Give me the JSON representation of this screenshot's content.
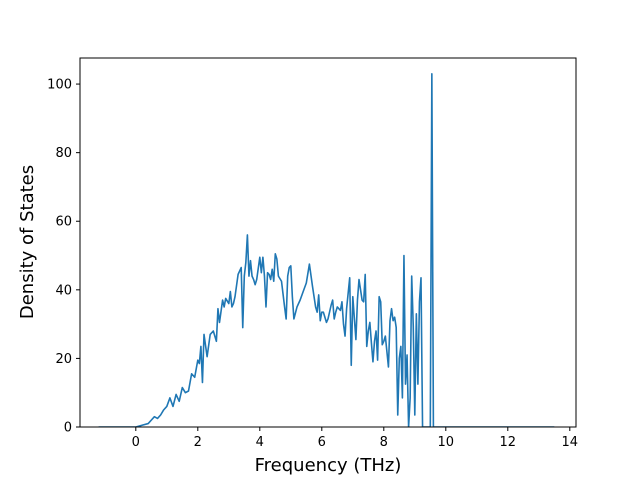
{
  "chart_data": {
    "type": "line",
    "title": "",
    "xlabel": "Frequency (THz)",
    "ylabel": "Density of States",
    "xlim": [
      -1.8,
      14.2
    ],
    "ylim": [
      0,
      107.6
    ],
    "xticks": [
      0,
      2,
      4,
      6,
      8,
      10,
      12,
      14
    ],
    "yticks": [
      0,
      20,
      40,
      60,
      80,
      100
    ],
    "grid": false,
    "legend": "none",
    "series": [
      {
        "color": "#1f77b4",
        "x": [
          -1.2,
          -0.5,
          0.0,
          0.2,
          0.4,
          0.5,
          0.6,
          0.7,
          0.8,
          0.9,
          1.0,
          1.1,
          1.2,
          1.3,
          1.4,
          1.5,
          1.6,
          1.7,
          1.8,
          1.9,
          2.0,
          2.05,
          2.1,
          2.15,
          2.2,
          2.3,
          2.4,
          2.5,
          2.6,
          2.65,
          2.7,
          2.8,
          2.85,
          2.9,
          3.0,
          3.05,
          3.1,
          3.15,
          3.2,
          3.3,
          3.4,
          3.45,
          3.5,
          3.55,
          3.6,
          3.65,
          3.7,
          3.75,
          3.8,
          3.85,
          3.9,
          4.0,
          4.05,
          4.1,
          4.15,
          4.2,
          4.25,
          4.3,
          4.35,
          4.4,
          4.45,
          4.5,
          4.55,
          4.6,
          4.7,
          4.8,
          4.85,
          4.9,
          4.95,
          5.0,
          5.05,
          5.1,
          5.2,
          5.3,
          5.4,
          5.5,
          5.6,
          5.7,
          5.8,
          5.85,
          5.9,
          5.95,
          6.0,
          6.05,
          6.1,
          6.15,
          6.2,
          6.3,
          6.35,
          6.4,
          6.45,
          6.5,
          6.6,
          6.65,
          6.7,
          6.75,
          6.8,
          6.9,
          6.95,
          7.0,
          7.1,
          7.15,
          7.2,
          7.3,
          7.35,
          7.4,
          7.45,
          7.5,
          7.55,
          7.6,
          7.65,
          7.7,
          7.75,
          7.8,
          7.85,
          7.9,
          7.95,
          8.0,
          8.05,
          8.1,
          8.15,
          8.2,
          8.25,
          8.3,
          8.35,
          8.4,
          8.45,
          8.5,
          8.55,
          8.6,
          8.65,
          8.7,
          8.75,
          8.8,
          8.85,
          8.9,
          8.95,
          9.0,
          9.05,
          9.1,
          9.15,
          9.2,
          9.25,
          9.3,
          9.35,
          9.4,
          9.45,
          9.5,
          9.55,
          9.6,
          9.65,
          9.7,
          9.75,
          9.8,
          9.85,
          9.9,
          9.95,
          10.0,
          10.05,
          10.1,
          10.15,
          10.2,
          10.25,
          10.3,
          10.35,
          10.4,
          10.45,
          10.5,
          10.55,
          10.6,
          10.65,
          10.7,
          10.75,
          10.8,
          10.85,
          10.9,
          10.95,
          11.0,
          11.05,
          11.1,
          11.2,
          12.0,
          13.5
        ],
        "y": [
          0,
          0,
          0,
          0.5,
          1.0,
          2.0,
          3.0,
          2.5,
          3.5,
          5.0,
          6.0,
          8.5,
          6.0,
          9.5,
          7.5,
          11.5,
          10.0,
          10.5,
          15.5,
          14.5,
          19.5,
          18.5,
          23.5,
          13.0,
          27.0,
          20.5,
          27.0,
          28.0,
          25.0,
          34.5,
          30.5,
          37.0,
          35.0,
          37.5,
          36.0,
          39.5,
          35.0,
          36.0,
          38.0,
          44.5,
          46.5,
          29.0,
          44.0,
          48.0,
          56.0,
          44.0,
          48.5,
          44.0,
          43.0,
          41.5,
          43.0,
          49.5,
          45.0,
          49.5,
          44.0,
          35.0,
          45.0,
          44.5,
          43.0,
          46.0,
          42.5,
          50.5,
          49.0,
          44.0,
          42.5,
          35.0,
          31.5,
          44.0,
          46.5,
          47.0,
          38.0,
          31.5,
          35.0,
          37.0,
          39.5,
          42.0,
          47.5,
          41.0,
          35.0,
          33.5,
          38.5,
          31.0,
          33.5,
          33.5,
          32.0,
          30.5,
          31.5,
          35.5,
          37.0,
          31.5,
          33.5,
          35.0,
          34.0,
          36.5,
          30.0,
          26.5,
          34.5,
          43.5,
          18.0,
          38.0,
          25.5,
          37.0,
          43.0,
          37.0,
          36.5,
          44.5,
          23.5,
          28.0,
          30.5,
          24.5,
          19.0,
          25.0,
          28.0,
          19.5,
          38.0,
          36.5,
          24.0,
          25.0,
          26.5,
          22.0,
          17.5,
          31.0,
          34.5,
          31.0,
          32.0,
          29.0,
          3.5,
          20.0,
          23.5,
          8.5,
          50.0,
          12.5,
          21.0,
          0,
          8.5,
          44.0,
          29.5,
          3.5,
          33.0,
          12.5,
          36.5,
          43.5,
          0,
          0,
          0,
          0,
          0,
          0,
          103.0,
          0,
          0,
          0,
          0,
          0,
          0,
          0,
          0,
          0,
          0,
          0,
          0,
          0,
          0,
          0,
          0,
          0,
          0,
          0,
          0,
          0,
          0,
          0,
          0,
          0,
          0,
          0,
          0,
          0,
          0,
          0,
          0,
          0,
          0
        ]
      }
    ]
  }
}
